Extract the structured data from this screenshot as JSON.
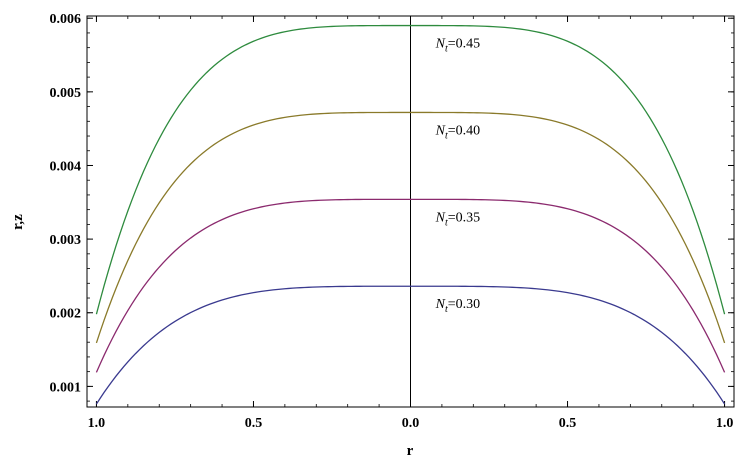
{
  "chart_data": {
    "type": "line",
    "title": "",
    "xlabel": "r",
    "ylabel": "r,z",
    "x_ticks": [
      -1.0,
      -0.5,
      0.0,
      0.5,
      1.0
    ],
    "x_tick_labels": [
      "1.0",
      "0.5",
      "0.0",
      "0.5",
      "1.0"
    ],
    "y_ticks": [
      0.001,
      0.002,
      0.003,
      0.004,
      0.005,
      0.006
    ],
    "y_tick_labels": [
      "0.001",
      "0.002",
      "0.003",
      "0.004",
      "0.005",
      "0.006"
    ],
    "xlim": [
      -1.03,
      1.03
    ],
    "ylim": [
      0.00072,
      0.00603
    ],
    "grid": false,
    "series": [
      {
        "name": "N_t=0.30",
        "label_main": "N",
        "label_sub": "t",
        "label_rest": "=0.30",
        "color": "#3a3a8f",
        "center": 0.00236,
        "edge": 0.00076
      },
      {
        "name": "N_t=0.35",
        "label_main": "N",
        "label_sub": "t",
        "label_rest": "=0.35",
        "color": "#8b2a6e",
        "center": 0.00354,
        "edge": 0.00119
      },
      {
        "name": "N_t=0.40",
        "label_main": "N",
        "label_sub": "t",
        "label_rest": "=0.40",
        "color": "#8a7a2a",
        "center": 0.00472,
        "edge": 0.00159
      },
      {
        "name": "N_t=0.45",
        "label_main": "N",
        "label_sub": "t",
        "label_rest": "=0.45",
        "color": "#2e8b3e",
        "center": 0.0059,
        "edge": 0.00198
      }
    ]
  }
}
